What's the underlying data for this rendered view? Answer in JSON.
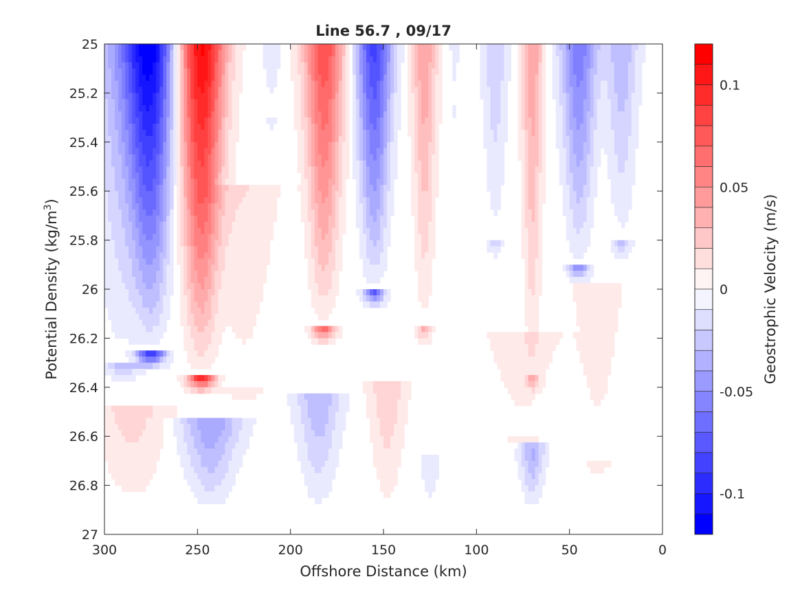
{
  "chart_data": {
    "type": "contour",
    "title": "Line 56.7 , 09/17",
    "xlabel": "Offshore Distance (km)",
    "ylabel_prefix": "Potential Density (kg/m",
    "ylabel_superscript": "3",
    "ylabel_suffix": ")",
    "colorbar_label": "Geostrophic Velocity (m/s)",
    "xlim": [
      300,
      0
    ],
    "ylim": [
      25,
      27
    ],
    "x_reversed": true,
    "y_reversed": true,
    "xticks": [
      300,
      250,
      200,
      150,
      100,
      50,
      0
    ],
    "xtick_labels": [
      "300",
      "250",
      "200",
      "150",
      "100",
      "50",
      "0"
    ],
    "yticks": [
      25,
      25.2,
      25.4,
      25.6,
      25.8,
      26,
      26.2,
      26.4,
      26.6,
      26.8,
      27
    ],
    "ytick_labels": [
      "25",
      "25.2",
      "25.4",
      "25.6",
      "25.8",
      "26",
      "26.2",
      "26.4",
      "26.6",
      "26.8",
      "27"
    ],
    "colorbar_range": [
      -0.12,
      0.12
    ],
    "colorbar_ticks": [
      0.1,
      0.05,
      0,
      -0.05,
      -0.1
    ],
    "colorbar_tick_labels": [
      "0.1",
      "0.05",
      "0",
      "-0.05",
      "-0.1"
    ],
    "colormap": {
      "negative": "#0000ff",
      "zero": "#ffffff",
      "positive": "#ff0000"
    },
    "levels_step": 0.01,
    "data_extent_y": [
      25,
      26.9
    ],
    "features": [
      {
        "x": 275,
        "y_top": 25.0,
        "y_bottom": 26.25,
        "width_km": 14,
        "peak": -0.11
      },
      {
        "x": 290,
        "y_top": 25.0,
        "y_bottom": 26.3,
        "width_km": 18,
        "peak": -0.035
      },
      {
        "x": 248,
        "y_top": 25.0,
        "y_bottom": 26.35,
        "width_km": 13,
        "peak": 0.12
      },
      {
        "x": 225,
        "y_top": 25.6,
        "y_bottom": 26.4,
        "width_km": 18,
        "peak": 0.015
      },
      {
        "x": 210,
        "y_top": 25.0,
        "y_bottom": 25.3,
        "width_km": 6,
        "peak": -0.012
      },
      {
        "x": 182,
        "y_top": 25.0,
        "y_bottom": 26.15,
        "width_km": 11,
        "peak": 0.085
      },
      {
        "x": 155,
        "y_top": 25.0,
        "y_bottom": 26.0,
        "width_km": 10,
        "peak": -0.09
      },
      {
        "x": 128,
        "y_top": 25.0,
        "y_bottom": 26.15,
        "width_km": 7,
        "peak": 0.045
      },
      {
        "x": 112,
        "y_top": 25.0,
        "y_bottom": 25.25,
        "width_km": 3,
        "peak": -0.01
      },
      {
        "x": 90,
        "y_top": 25.0,
        "y_bottom": 25.8,
        "width_km": 7,
        "peak": -0.025
      },
      {
        "x": 70,
        "y_top": 25.0,
        "y_bottom": 26.35,
        "width_km": 6,
        "peak": 0.045
      },
      {
        "x": 45,
        "y_top": 25.0,
        "y_bottom": 25.9,
        "width_km": 10,
        "peak": -0.065
      },
      {
        "x": 22,
        "y_top": 25.0,
        "y_bottom": 25.8,
        "width_km": 9,
        "peak": -0.035
      },
      {
        "x": 35,
        "y_top": 26.0,
        "y_bottom": 26.7,
        "width_km": 14,
        "peak": 0.012
      },
      {
        "x": 285,
        "y_top": 26.5,
        "y_bottom": 26.9,
        "width_km": 20,
        "peak": 0.02
      },
      {
        "x": 243,
        "y_top": 26.55,
        "y_bottom": 26.9,
        "width_km": 16,
        "peak": -0.045
      },
      {
        "x": 185,
        "y_top": 26.45,
        "y_bottom": 26.9,
        "width_km": 12,
        "peak": -0.035
      },
      {
        "x": 148,
        "y_top": 26.4,
        "y_bottom": 26.9,
        "width_km": 10,
        "peak": 0.025
      },
      {
        "x": 125,
        "y_top": 26.7,
        "y_bottom": 26.9,
        "width_km": 5,
        "peak": -0.015
      },
      {
        "x": 70,
        "y_top": 26.65,
        "y_bottom": 26.9,
        "width_km": 7,
        "peak": -0.04
      },
      {
        "x": 75,
        "y_top": 26.2,
        "y_bottom": 26.6,
        "width_km": 20,
        "peak": 0.012
      }
    ]
  }
}
